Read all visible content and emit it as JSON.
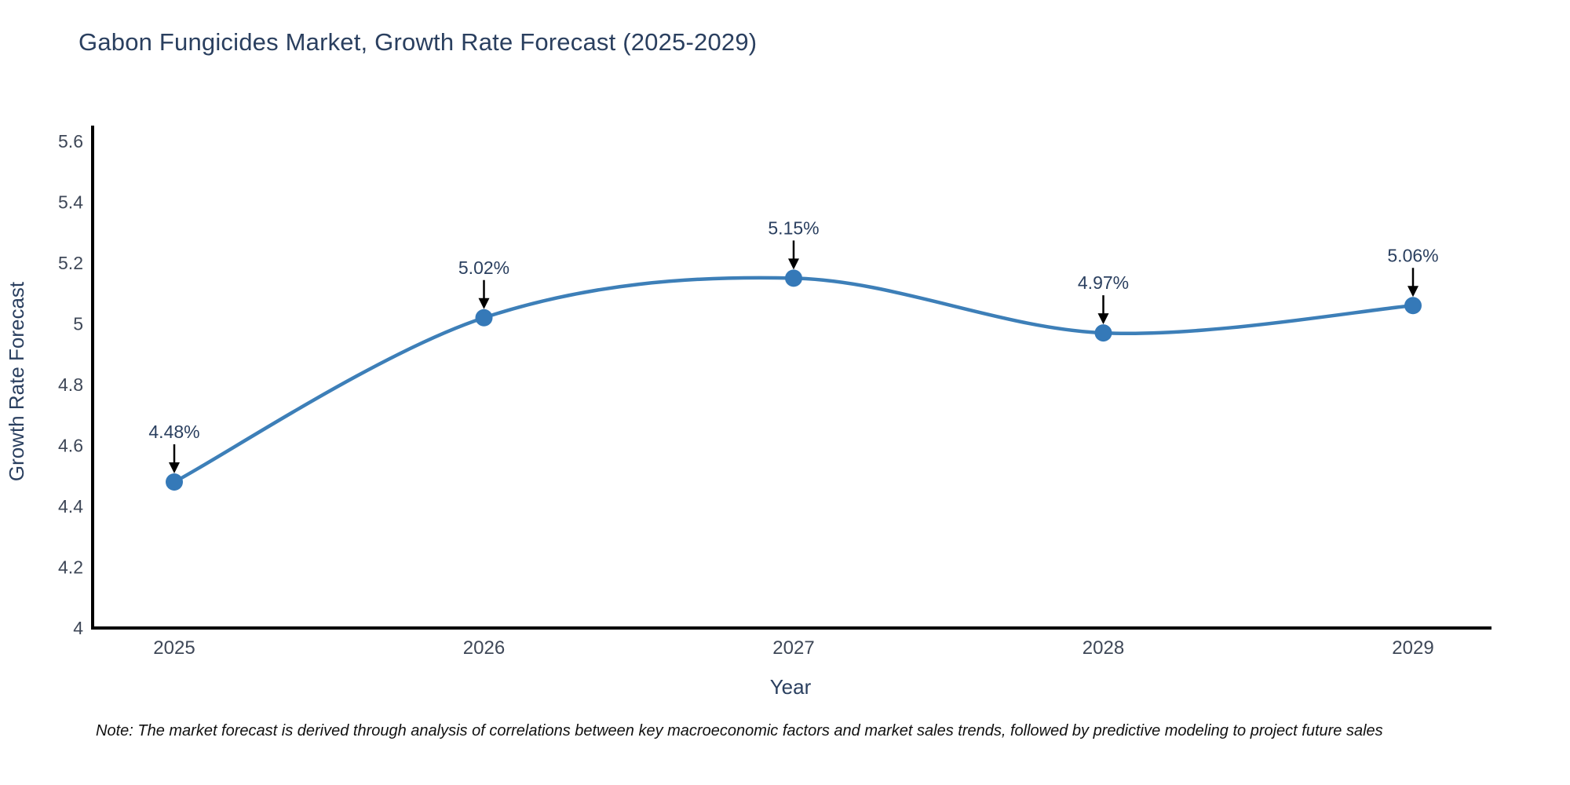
{
  "note": "Note: The market forecast is derived through analysis of correlations between key macroeconomic factors and market sales trends, followed by predictive modeling to project future sales",
  "chart_data": {
    "type": "line",
    "title": "Gabon Fungicides Market, Growth Rate Forecast (2025-2029)",
    "xlabel": "Year",
    "ylabel": "Growth Rate Forecast",
    "x": [
      2025,
      2026,
      2027,
      2028,
      2029
    ],
    "x_labels": [
      "2025",
      "2026",
      "2027",
      "2028",
      "2029"
    ],
    "values": [
      4.48,
      5.02,
      5.15,
      4.97,
      5.06
    ],
    "point_labels": [
      "4.48%",
      "5.02%",
      "5.15%",
      "4.97%",
      "5.06%"
    ],
    "ylim": [
      4,
      5.6
    ],
    "yticks": [
      4,
      4.2,
      4.4,
      4.6,
      4.8,
      5,
      5.2,
      5.4,
      5.6
    ],
    "ytick_labels": [
      "4",
      "4.2",
      "4.4",
      "4.6",
      "4.8",
      "5",
      "5.2",
      "5.4",
      "5.6"
    ],
    "grid": false,
    "legend": "none",
    "curve": "spline",
    "line_color": "#3d7fb8",
    "marker_color": "#3579b8",
    "axis_color": "#000000",
    "text_color": "#2a3f5f",
    "tick_color": "#3e4757",
    "annotation_arrow_color": "#000000"
  }
}
